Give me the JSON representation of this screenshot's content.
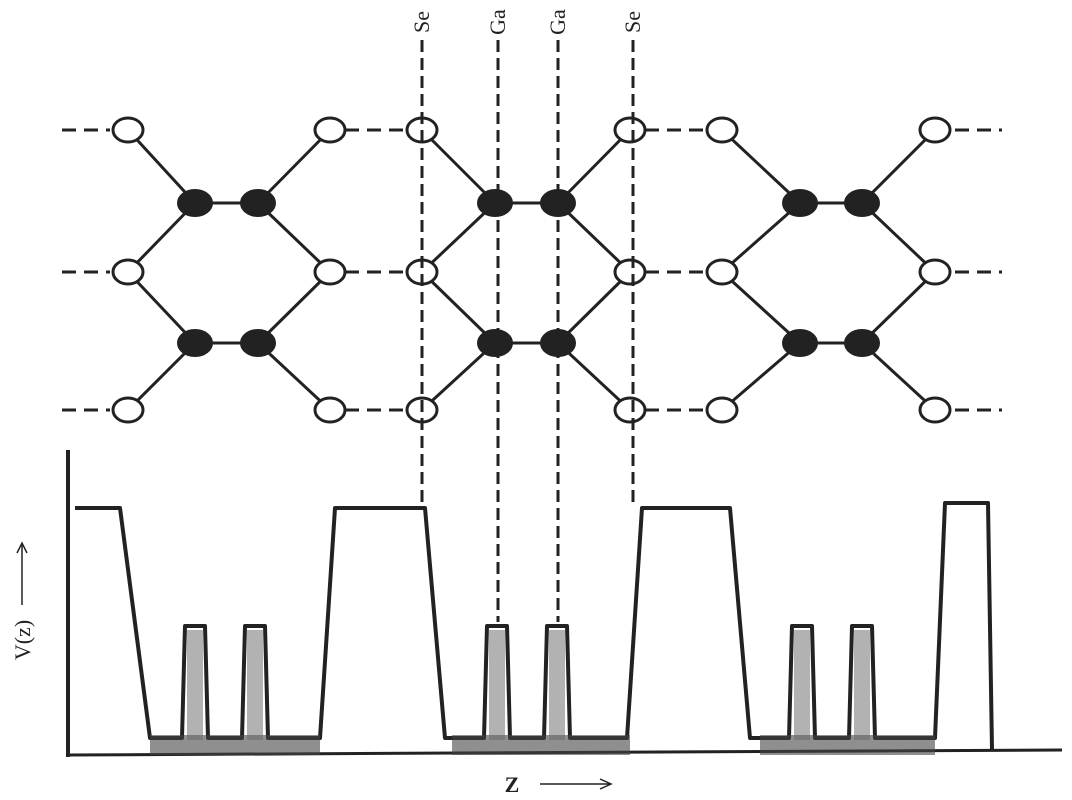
{
  "column_labels": [
    "Se",
    "Ga",
    "Ga",
    "Se"
  ],
  "y_axis_label": "V(z)",
  "x_axis_label": "Z"
}
